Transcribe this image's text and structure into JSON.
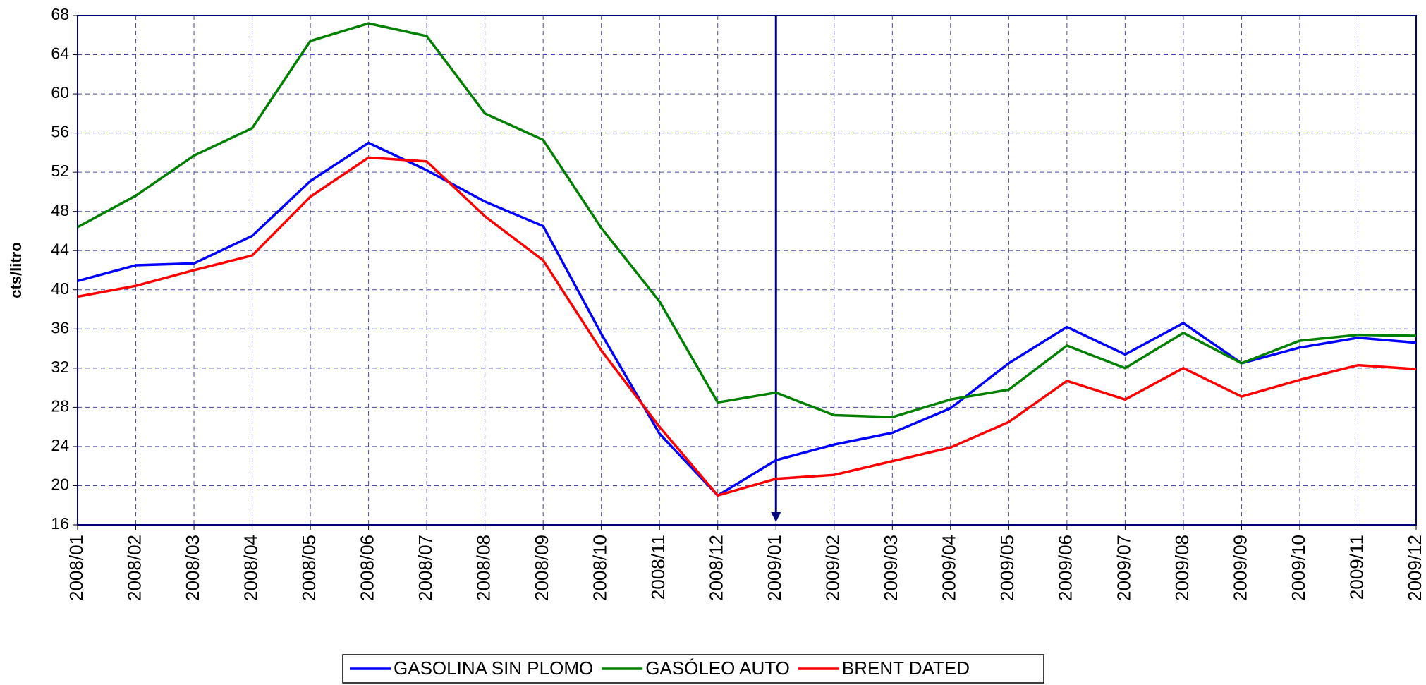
{
  "chart_data": {
    "type": "line",
    "y_label": "cts/litro",
    "categories": [
      "2008/01",
      "2008/02",
      "2008/03",
      "2008/04",
      "2008/05",
      "2008/06",
      "2008/07",
      "2008/08",
      "2008/09",
      "2008/10",
      "2008/11",
      "2008/12",
      "2009/01",
      "2009/02",
      "2009/03",
      "2009/04",
      "2009/05",
      "2009/06",
      "2009/07",
      "2009/08",
      "2009/09",
      "2009/10",
      "2009/11",
      "2009/12"
    ],
    "series": [
      {
        "name": "GASOLINA SIN PLOMO",
        "color": "#0000ff",
        "values": [
          40.9,
          42.5,
          42.7,
          45.5,
          51.1,
          55.0,
          52.2,
          49.0,
          46.5,
          35.5,
          25.3,
          19.0,
          22.6,
          24.2,
          25.4,
          27.9,
          32.5,
          36.2,
          33.4,
          36.6,
          32.5,
          34.1,
          35.1,
          34.6
        ]
      },
      {
        "name": "GASÓLEO AUTO",
        "color": "#008000",
        "values": [
          46.4,
          49.6,
          53.7,
          56.5,
          65.4,
          67.2,
          65.9,
          58.0,
          55.3,
          46.3,
          38.8,
          28.5,
          29.5,
          27.2,
          27.0,
          28.8,
          29.8,
          34.3,
          32.0,
          35.6,
          32.5,
          34.8,
          35.4,
          35.3
        ]
      },
      {
        "name": "BRENT DATED",
        "color": "#ff0000",
        "values": [
          39.3,
          40.4,
          42.0,
          43.5,
          49.5,
          53.5,
          53.1,
          47.5,
          43.0,
          33.8,
          26.0,
          19.0,
          20.7,
          21.1,
          22.5,
          23.9,
          26.5,
          30.7,
          28.8,
          32.0,
          29.1,
          30.8,
          32.3,
          31.9
        ]
      }
    ],
    "ylim": [
      16,
      68
    ],
    "yticks": [
      16,
      20,
      24,
      28,
      32,
      36,
      40,
      44,
      48,
      52,
      56,
      60,
      64,
      68
    ],
    "grid": true,
    "legend": "bottom",
    "marker_category": 12
  }
}
